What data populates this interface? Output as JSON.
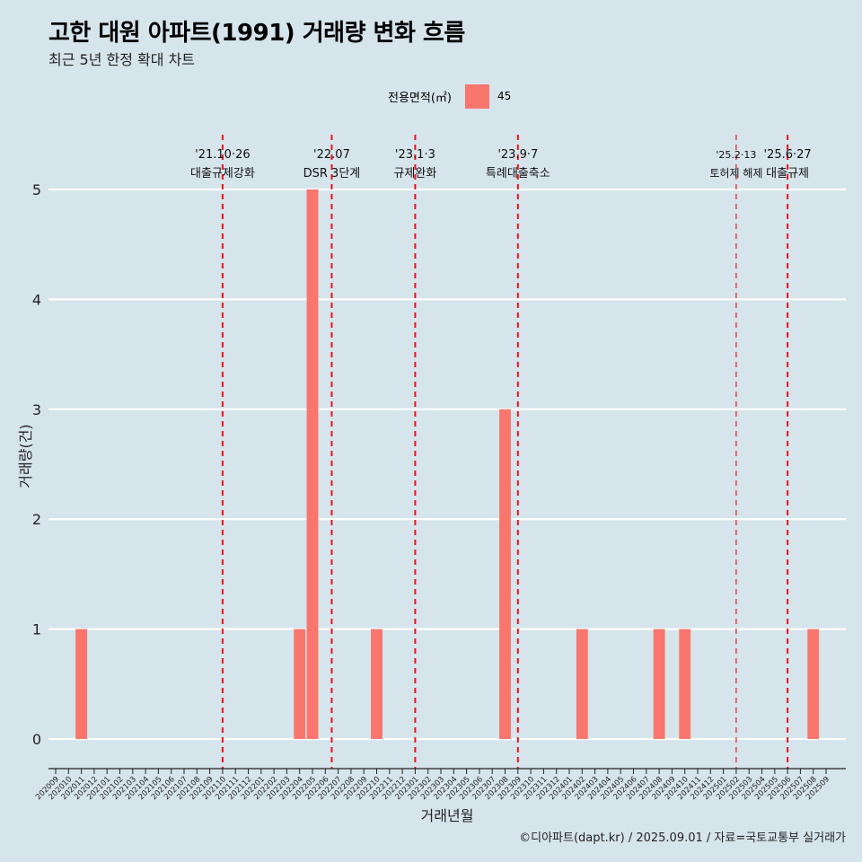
{
  "page": {
    "title": "고한 대원 아파트(1991) 거래량 변화 흐름",
    "subtitle": "최근 5년 한정 확대 차트",
    "caption": "©디아파트(dapt.kr) / 2025.09.01 / 자료=국토교통부 실거래가"
  },
  "legend": {
    "title": "전용면적(㎡)",
    "items": [
      {
        "label": "45",
        "color": "#f8766d"
      }
    ]
  },
  "colors": {
    "background": "#d6e4eb",
    "bar": "#f8766d",
    "event_line": "#e8141c",
    "grid": "#ffffff"
  },
  "chart_data": {
    "type": "bar",
    "title": "고한 대원 아파트(1991) 거래량 변화 흐름",
    "subtitle": "최근 5년 한정 확대 차트",
    "xlabel": "거래년월",
    "ylabel": "거래량(건)",
    "ylim": [
      0,
      5
    ],
    "y_ticks": [
      0,
      1,
      2,
      3,
      4,
      5
    ],
    "grid": true,
    "legend_position": "top",
    "categories": [
      "202009",
      "202010",
      "202011",
      "202012",
      "202101",
      "202102",
      "202103",
      "202104",
      "202105",
      "202106",
      "202107",
      "202108",
      "202109",
      "202110",
      "202111",
      "202112",
      "202201",
      "202202",
      "202203",
      "202204",
      "202205",
      "202206",
      "202207",
      "202208",
      "202209",
      "202210",
      "202211",
      "202212",
      "202301",
      "202302",
      "202303",
      "202304",
      "202305",
      "202306",
      "202307",
      "202308",
      "202309",
      "202310",
      "202311",
      "202312",
      "202401",
      "202402",
      "202403",
      "202404",
      "202405",
      "202406",
      "202407",
      "202408",
      "202409",
      "202410",
      "202411",
      "202412",
      "202501",
      "202502",
      "202503",
      "202504",
      "202505",
      "202506",
      "202507",
      "202508",
      "202509"
    ],
    "series": [
      {
        "name": "45",
        "values": [
          0,
          0,
          1,
          0,
          0,
          0,
          0,
          0,
          0,
          0,
          0,
          0,
          0,
          0,
          0,
          0,
          0,
          0,
          0,
          1,
          5,
          0,
          0,
          0,
          0,
          1,
          0,
          0,
          0,
          0,
          0,
          0,
          0,
          0,
          0,
          3,
          0,
          0,
          0,
          0,
          0,
          1,
          0,
          0,
          0,
          0,
          0,
          1,
          0,
          1,
          0,
          0,
          0,
          0,
          0,
          0,
          0,
          0,
          0,
          1,
          0
        ]
      }
    ],
    "events": [
      {
        "date_label": "'21.10·26",
        "text": "대출규제강화",
        "after_category": "202110",
        "offset": 0.0,
        "style": "bold"
      },
      {
        "date_label": "'22.07",
        "text": "DSR 3단계",
        "after_category": "202206",
        "offset": 0.5,
        "style": "bold"
      },
      {
        "date_label": "'23.1·3",
        "text": "규제완화",
        "after_category": "202301",
        "offset": 0.0,
        "style": "bold"
      },
      {
        "date_label": "'23.9·7",
        "text": "특례대출축소",
        "after_category": "202309",
        "offset": 0.0,
        "style": "bold"
      },
      {
        "date_label": "'25.2·13",
        "text": "토허제 해제",
        "after_category": "202502",
        "offset": 0.0,
        "style": "thin"
      },
      {
        "date_label": "'25.6·27",
        "text": "대출규제",
        "after_category": "202506",
        "offset": 0.0,
        "style": "bold"
      }
    ]
  }
}
